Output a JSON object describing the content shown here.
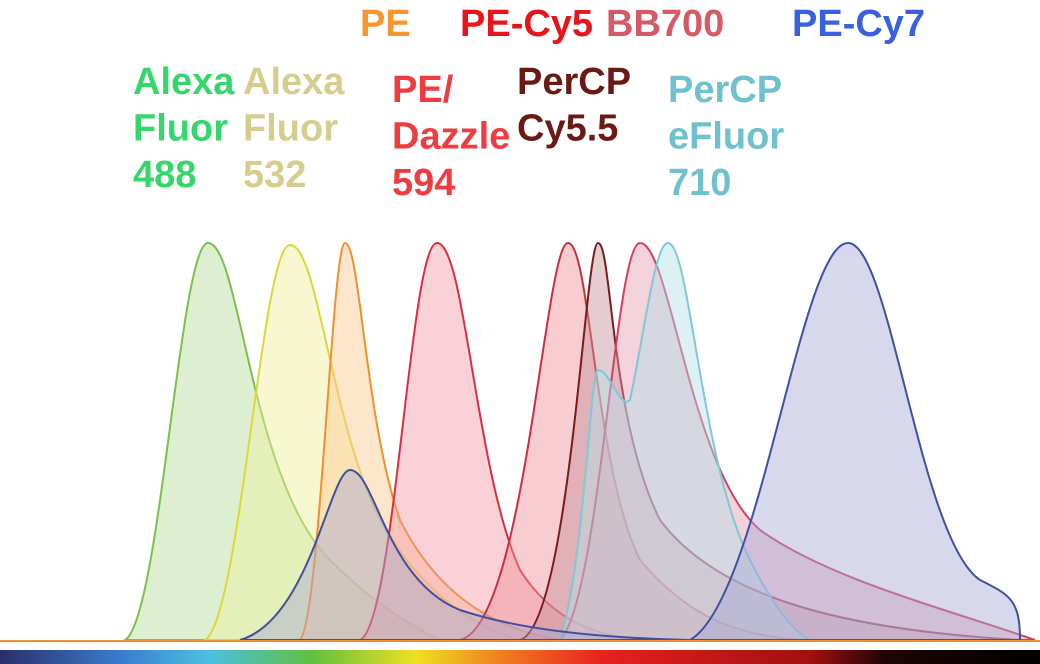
{
  "labels": [
    {
      "lines": [
        "Alexa",
        "Fluor",
        "488"
      ],
      "color": "#35d66a"
    },
    {
      "lines": [
        "Alexa",
        "Fluor",
        "532"
      ],
      "color": "#d6cd8c"
    },
    {
      "lines": [
        "PE"
      ],
      "color": "#f7962e"
    },
    {
      "lines": [
        "PE-Cy5"
      ],
      "color": "#e8141c"
    },
    {
      "lines": [
        "BB700"
      ],
      "color": "#d55a66"
    },
    {
      "lines": [
        "PE-Cy7"
      ],
      "color": "#3a60e2"
    },
    {
      "lines": [
        "PE/",
        "Dazzle",
        "594"
      ],
      "color": "#f03b40"
    },
    {
      "lines": [
        "PerCP",
        "Cy5.5"
      ],
      "color": "#6a1a15"
    },
    {
      "lines": [
        "PerCP",
        "eFluor",
        "710"
      ],
      "color": "#6fc1cd"
    }
  ]
}
